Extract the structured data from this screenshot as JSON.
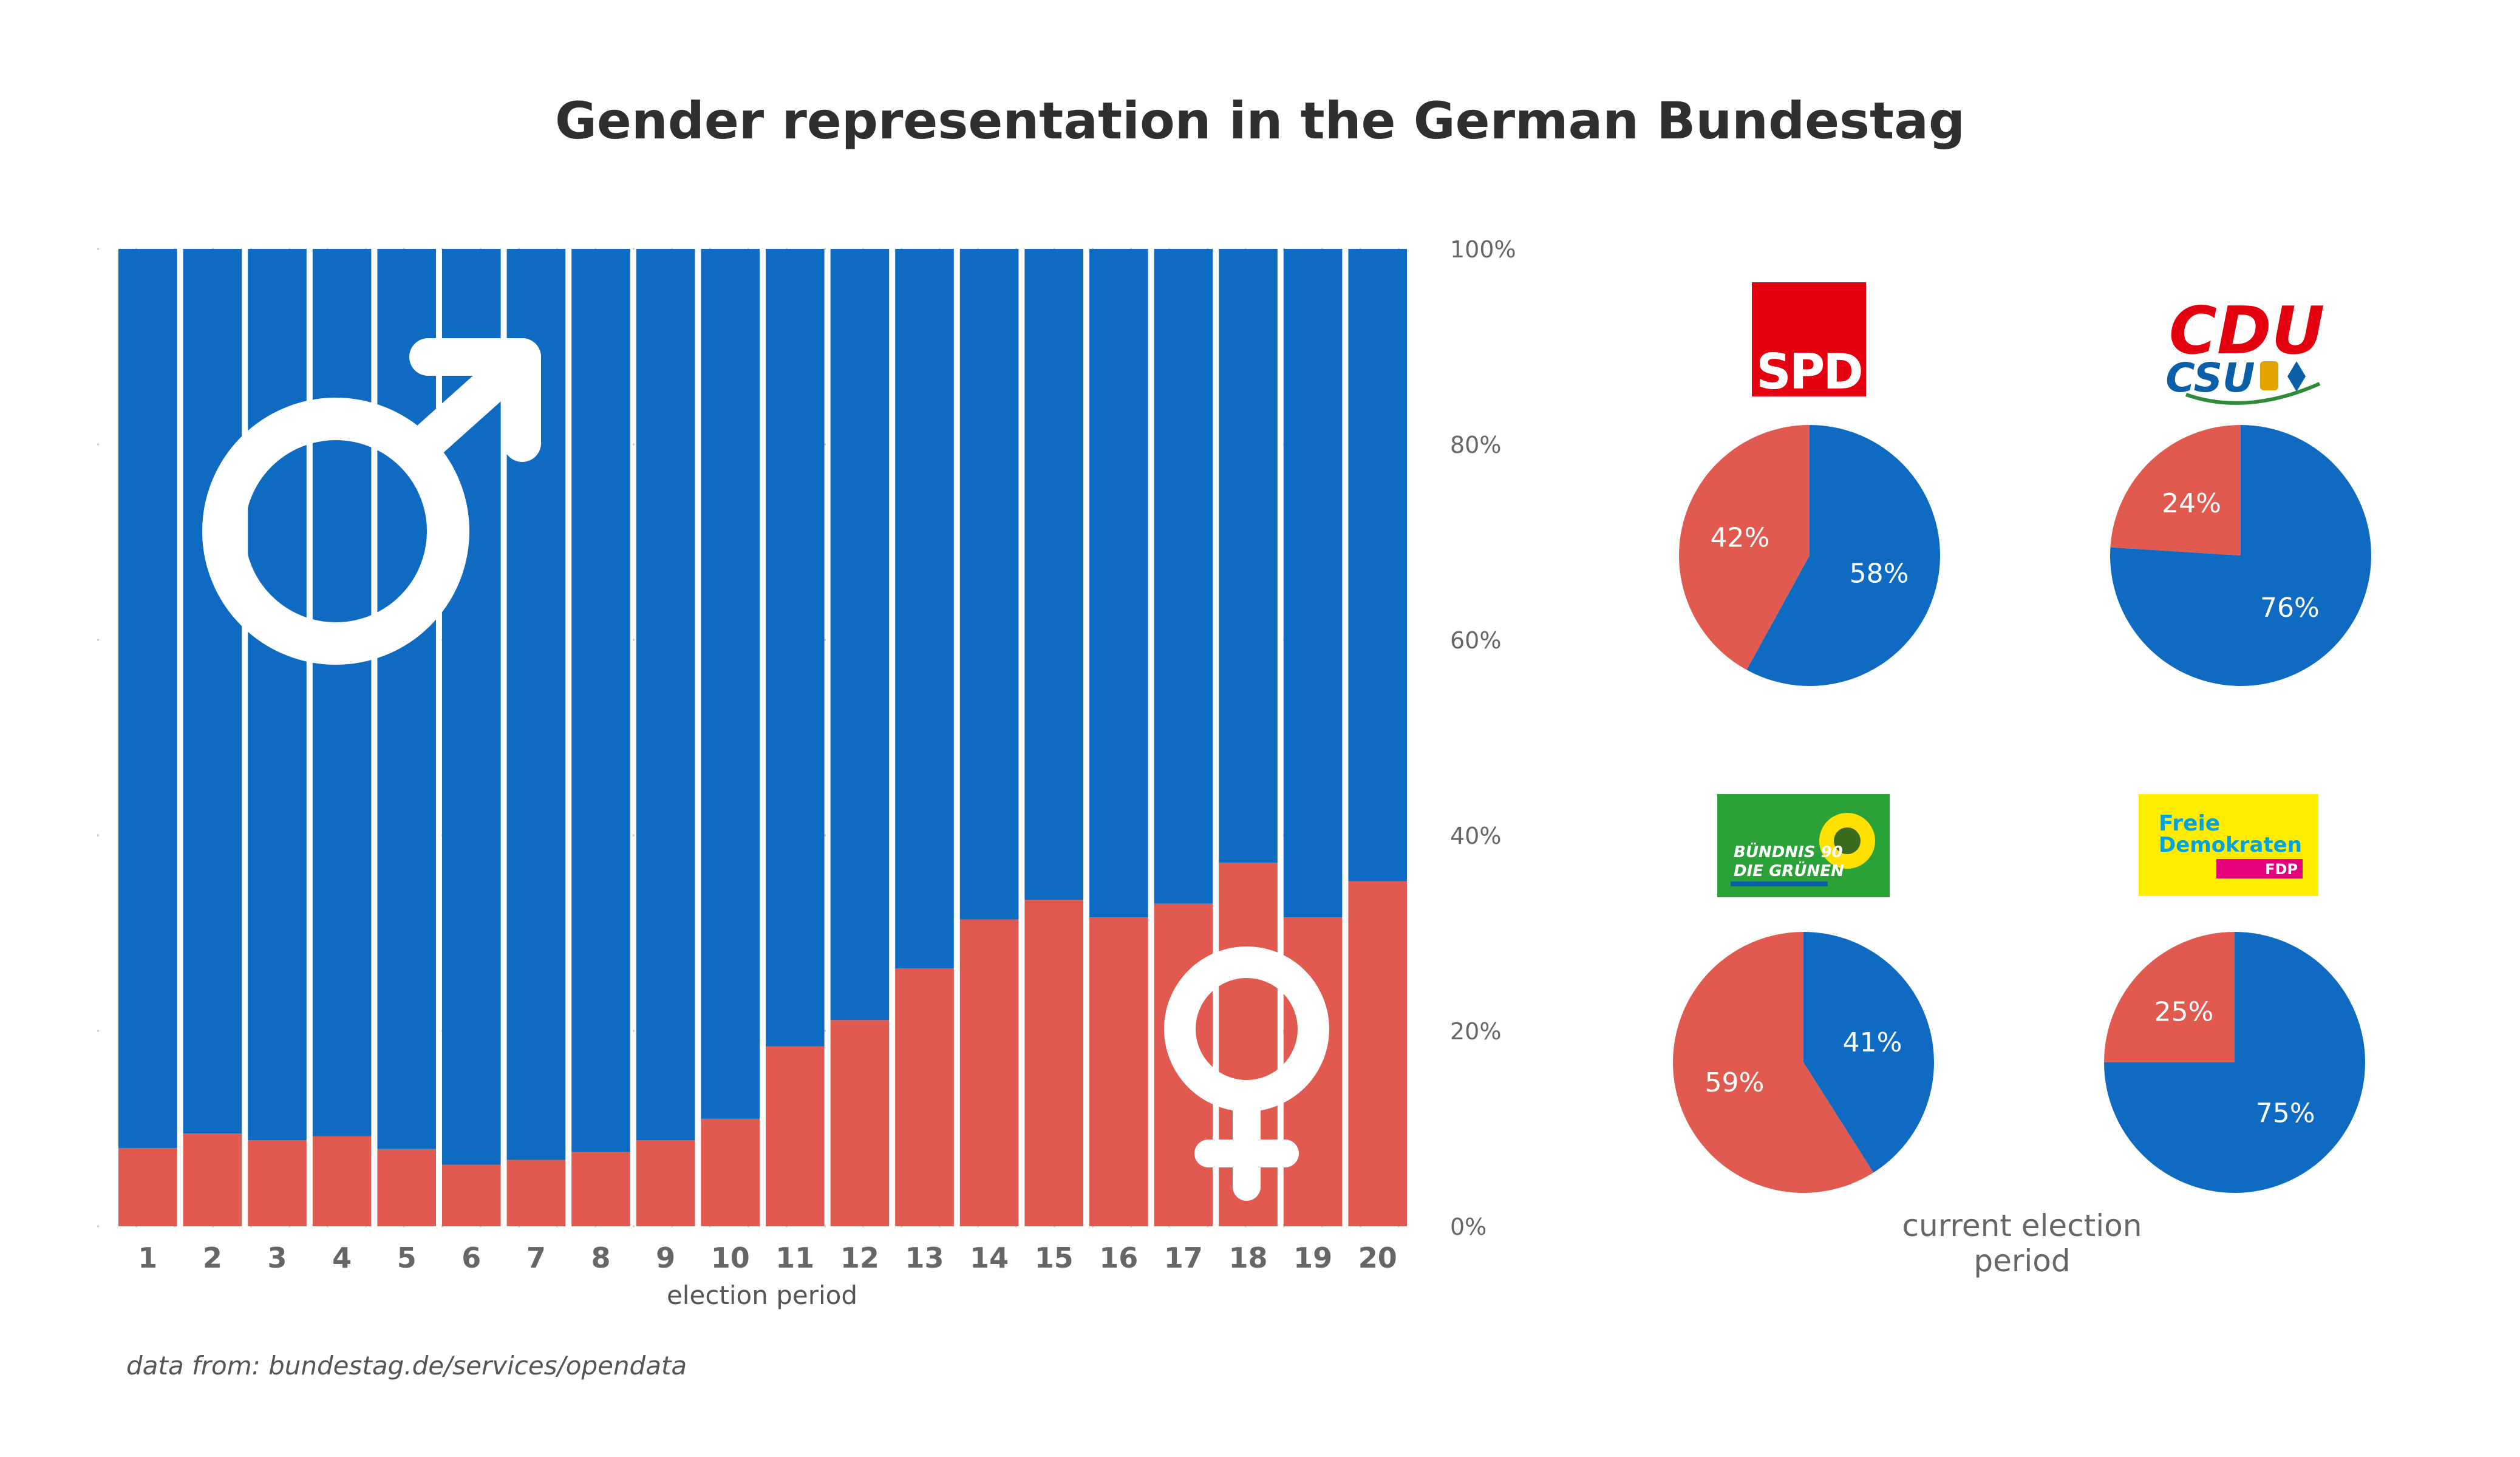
{
  "title": "Gender representation in the German Bundestag",
  "source_note": "data from: bundestag.de/services/opendata",
  "colors": {
    "male": "#0f6bc1",
    "female": "#e05a4f",
    "axis_text": "#888888",
    "tick_text": "#666666"
  },
  "icons": {
    "male": "male-symbol-icon",
    "female": "female-symbol-icon"
  },
  "chart_data": [
    {
      "type": "bar",
      "stacked": true,
      "normalized": true,
      "categories": [
        "1",
        "2",
        "3",
        "4",
        "5",
        "6",
        "7",
        "8",
        "9",
        "10",
        "11",
        "12",
        "13",
        "14",
        "15",
        "16",
        "17",
        "18",
        "19",
        "20"
      ],
      "series": [
        {
          "color": "#e05a4f",
          "values": [
            8,
            9.5,
            8.8,
            9.2,
            7.9,
            6.3,
            6.8,
            7.6,
            8.8,
            11,
            18.4,
            21.1,
            26.4,
            31.4,
            33.4,
            31.6,
            33,
            37.2,
            31.6,
            35.3
          ]
        },
        {
          "color": "#0f6bc1",
          "values": [
            92,
            90.5,
            91.2,
            90.8,
            92.1,
            93.7,
            93.2,
            92.4,
            91.2,
            89,
            81.6,
            78.9,
            73.6,
            68.6,
            66.6,
            68.4,
            67,
            62.8,
            68.4,
            64.7
          ]
        }
      ],
      "xlabel": "election period",
      "ylim": [
        0,
        100
      ],
      "yticks": [
        "0%",
        "20%",
        "40%",
        "60%",
        "80%",
        "100%"
      ],
      "grid": true
    },
    {
      "type": "pie",
      "caption": "current election period",
      "parties": [
        {
          "party": "SPD",
          "logo_text": "SPD",
          "female": 42,
          "male": 58,
          "female_label": "42%",
          "male_label": "58%"
        },
        {
          "party": "CDU/CSU",
          "logo_text": [
            "CDU",
            "CSU"
          ],
          "female": 24,
          "male": 76,
          "female_label": "24%",
          "male_label": "76%"
        },
        {
          "party": "Bündnis 90/Die Grünen",
          "logo_text": [
            "BÜNDNIS 90",
            "DIE GRÜNEN"
          ],
          "female": 59,
          "male": 41,
          "female_label": "59%",
          "male_label": "41%"
        },
        {
          "party": "FDP",
          "logo_text": [
            "Freie",
            "Demokraten",
            "FDP"
          ],
          "female": 25,
          "male": 75,
          "female_label": "25%",
          "male_label": "75%"
        }
      ]
    }
  ]
}
